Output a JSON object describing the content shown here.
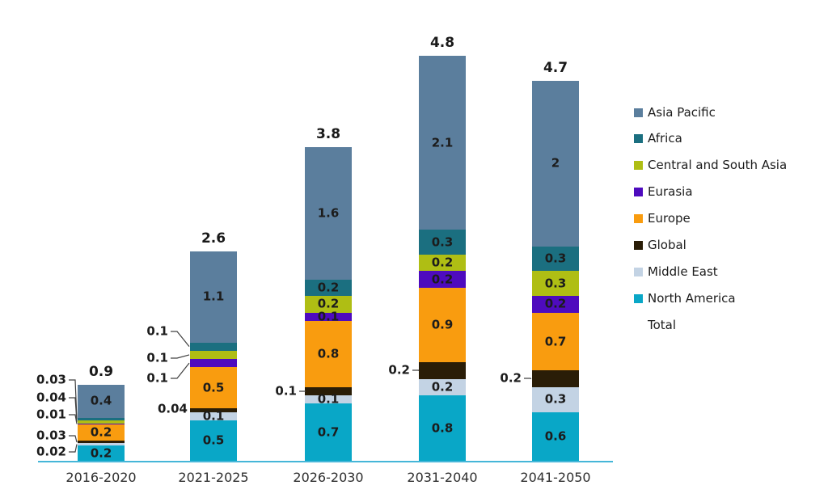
{
  "chart_data": {
    "type": "bar",
    "stacked": true,
    "title": "",
    "xlabel": "",
    "ylabel": "",
    "grid": false,
    "legend_position": "right",
    "ylim": [
      0,
      5
    ],
    "axis_color": "#45B6D8",
    "categories": [
      "2016-2020",
      "2021-2025",
      "2026-2030",
      "2031-2040",
      "2041-2050"
    ],
    "totals": [
      "0.9",
      "2.6",
      "3.8",
      "4.8",
      "4.7"
    ],
    "series": [
      {
        "name": "North America",
        "color": "#09A7C7",
        "values": [
          0.2,
          0.5,
          0.7,
          0.8,
          0.6
        ],
        "labels": [
          "0.2",
          "0.5",
          "0.7",
          "0.8",
          "0.6"
        ],
        "callout": [
          false,
          false,
          false,
          false,
          false
        ]
      },
      {
        "name": "Middle East",
        "color": "#C3D3E4",
        "values": [
          0.02,
          0.1,
          0.1,
          0.2,
          0.3
        ],
        "labels": [
          "0.02",
          "0.1",
          "0.1",
          "0.2",
          "0.3"
        ],
        "callout": [
          true,
          false,
          false,
          false,
          false
        ]
      },
      {
        "name": "Global",
        "color": "#2A1D07",
        "values": [
          0.03,
          0.04,
          0.1,
          0.2,
          0.2
        ],
        "labels": [
          "0.03",
          "0.04",
          "0.1",
          "0.2",
          "0.2"
        ],
        "callout": [
          true,
          true,
          true,
          true,
          true
        ]
      },
      {
        "name": "Europe",
        "color": "#F99C0F",
        "values": [
          0.2,
          0.5,
          0.8,
          0.9,
          0.7
        ],
        "labels": [
          "0.2",
          "0.5",
          "0.8",
          "0.9",
          "0.7"
        ],
        "callout": [
          false,
          false,
          false,
          false,
          false
        ]
      },
      {
        "name": "Eurasia",
        "color": "#4E0BBE",
        "values": [
          0.01,
          0.1,
          0.1,
          0.2,
          0.2
        ],
        "labels": [
          "0.01",
          "0.1",
          "0.1",
          "0.2",
          "0.2"
        ],
        "callout": [
          true,
          true,
          false,
          false,
          false
        ]
      },
      {
        "name": "Central and South Asia",
        "color": "#AFBE14",
        "values": [
          0.04,
          0.1,
          0.2,
          0.2,
          0.3
        ],
        "labels": [
          "0.04",
          "0.1",
          "0.2",
          "0.2",
          "0.3"
        ],
        "callout": [
          true,
          true,
          false,
          false,
          false
        ]
      },
      {
        "name": "Africa",
        "color": "#1B6F80",
        "values": [
          0.03,
          0.1,
          0.2,
          0.3,
          0.3
        ],
        "labels": [
          "0.03",
          "0.1",
          "0.2",
          "0.3",
          "0.3"
        ],
        "callout": [
          true,
          true,
          false,
          false,
          false
        ]
      },
      {
        "name": "Asia Pacific",
        "color": "#5B7E9D",
        "values": [
          0.4,
          1.1,
          1.6,
          2.1,
          2.0
        ],
        "labels": [
          "0.4",
          "1.1",
          "1.6",
          "2.1",
          "2"
        ],
        "callout": [
          false,
          false,
          false,
          false,
          false
        ]
      }
    ],
    "legend": [
      {
        "label": "Asia Pacific",
        "color": "#5B7E9D"
      },
      {
        "label": "Africa",
        "color": "#1B6F80"
      },
      {
        "label": "Central and South Asia",
        "color": "#AFBE14"
      },
      {
        "label": "Eurasia",
        "color": "#4E0BBE"
      },
      {
        "label": "Europe",
        "color": "#F99C0F"
      },
      {
        "label": "Global",
        "color": "#2A1D07"
      },
      {
        "label": "Middle East",
        "color": "#C3D3E4"
      },
      {
        "label": "North America",
        "color": "#09A7C7"
      },
      {
        "label": "Total",
        "color": null
      }
    ]
  }
}
